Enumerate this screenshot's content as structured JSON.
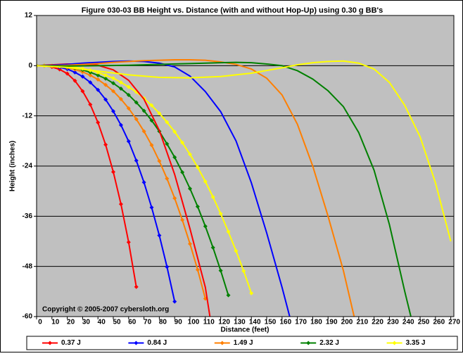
{
  "chart_data": {
    "type": "line",
    "title": "Figure 030-03  BB Height vs. Distance (with and without Hop-Up) using 0.30 g BB's",
    "x_label": "Distance (feet)",
    "y_label": "Height (inches)",
    "annotation": "Copyright © 2005-2007 cybersloth.org",
    "xlim": [
      0,
      272
    ],
    "xticks": [
      0,
      10,
      20,
      30,
      40,
      50,
      60,
      70,
      80,
      90,
      100,
      110,
      120,
      130,
      140,
      150,
      160,
      170,
      180,
      190,
      200,
      210,
      220,
      230,
      240,
      250,
      260,
      270
    ],
    "ylim": [
      -60,
      12
    ],
    "yticks": [
      12,
      0,
      -12,
      -24,
      -36,
      -48,
      -60
    ],
    "grid": true,
    "background": "#c0c0c0",
    "series": [
      {
        "name": "0.37 J",
        "color": "#ff0000",
        "markers": true,
        "x": [
          0,
          5,
          10,
          15,
          20,
          25,
          30,
          35,
          40,
          45,
          50,
          55,
          60,
          65
        ],
        "values": [
          0,
          0,
          -0.3,
          -0.9,
          -1.9,
          -3.6,
          -6.1,
          -9.3,
          -13.6,
          -18.9,
          -25.4,
          -33.1,
          -42.2,
          -52.9
        ]
      },
      {
        "name": "0.84 J",
        "color": "#0000ff",
        "markers": true,
        "x": [
          0,
          5,
          10,
          15,
          20,
          25,
          30,
          35,
          40,
          45,
          50,
          55,
          60,
          65,
          70,
          75,
          80,
          85,
          90
        ],
        "values": [
          0,
          0,
          -0.1,
          -0.4,
          -0.8,
          -1.6,
          -2.6,
          -4.0,
          -5.8,
          -8.1,
          -10.9,
          -14.2,
          -18.1,
          -22.7,
          -27.9,
          -33.9,
          -40.6,
          -48.1,
          -56.4
        ]
      },
      {
        "name": "1.49 J",
        "color": "#ff7f00",
        "markers": true,
        "x": [
          0,
          5,
          10,
          15,
          20,
          25,
          30,
          35,
          40,
          45,
          50,
          55,
          60,
          65,
          70,
          75,
          80,
          85,
          90,
          95,
          100,
          105,
          110
        ],
        "values": [
          0,
          0,
          -0.1,
          -0.2,
          -0.5,
          -0.9,
          -1.5,
          -2.3,
          -3.3,
          -4.6,
          -6.1,
          -8.0,
          -10.2,
          -12.8,
          -15.7,
          -19.0,
          -22.8,
          -27.0,
          -31.7,
          -36.9,
          -42.6,
          -48.8,
          -55.7
        ]
      },
      {
        "name": "2.32 J",
        "color": "#008000",
        "markers": true,
        "x": [
          0,
          5,
          10,
          15,
          20,
          25,
          30,
          35,
          40,
          45,
          50,
          55,
          60,
          65,
          70,
          75,
          80,
          85,
          90,
          95,
          100,
          105,
          110,
          115,
          120,
          125
        ],
        "values": [
          0,
          0,
          0,
          -0.1,
          -0.3,
          -0.6,
          -1.0,
          -1.6,
          -2.3,
          -3.1,
          -4.2,
          -5.5,
          -7.0,
          -8.8,
          -10.8,
          -13.1,
          -15.7,
          -18.7,
          -21.9,
          -25.5,
          -29.4,
          -33.7,
          -38.4,
          -43.5,
          -49.0,
          -54.9
        ]
      },
      {
        "name": "3.35 J",
        "color": "#ffff00",
        "markers": true,
        "x": [
          0,
          5,
          10,
          15,
          20,
          25,
          30,
          35,
          40,
          45,
          50,
          55,
          60,
          65,
          70,
          75,
          80,
          85,
          90,
          95,
          100,
          105,
          110,
          115,
          120,
          125,
          130,
          135,
          140
        ],
        "values": [
          0,
          0,
          0,
          -0.1,
          -0.2,
          -0.4,
          -0.7,
          -1.1,
          -1.6,
          -2.3,
          -3.0,
          -4.0,
          -5.1,
          -6.3,
          -7.8,
          -9.5,
          -11.4,
          -13.5,
          -15.8,
          -18.4,
          -21.2,
          -24.3,
          -27.7,
          -31.4,
          -35.4,
          -39.7,
          -44.3,
          -49.1,
          -54.4
        ]
      },
      {
        "color": "#ff0000",
        "markers": false,
        "x": [
          0,
          10,
          20,
          30,
          40,
          50,
          60,
          70,
          80,
          90,
          100,
          110,
          113
        ],
        "values": [
          0,
          0.2,
          0.4,
          0.4,
          0.1,
          -1,
          -3.5,
          -8,
          -15.5,
          -26,
          -39,
          -53,
          -60
        ]
      },
      {
        "color": "#0000ff",
        "markers": false,
        "x": [
          0,
          10,
          20,
          30,
          40,
          50,
          60,
          70,
          80,
          90,
          100,
          110,
          120,
          130,
          140,
          150,
          160,
          165
        ],
        "values": [
          0,
          0.1,
          0.3,
          0.6,
          0.8,
          1,
          1.1,
          1,
          0.6,
          -0.3,
          -2.5,
          -6.2,
          -11,
          -18,
          -28,
          -40,
          -53,
          -60
        ]
      },
      {
        "color": "#ff7f00",
        "markers": false,
        "x": [
          0,
          10,
          20,
          30,
          40,
          50,
          60,
          70,
          80,
          90,
          100,
          110,
          120,
          130,
          140,
          150,
          160,
          170,
          180,
          190,
          200,
          207
        ],
        "values": [
          0,
          0,
          0.1,
          0.3,
          0.5,
          0.8,
          1,
          1.2,
          1.3,
          1.4,
          1.4,
          1.3,
          0.9,
          0.3,
          -0.8,
          -3,
          -7,
          -14,
          -24,
          -36,
          -49,
          -60
        ]
      },
      {
        "color": "#008000",
        "markers": false,
        "x": [
          0,
          20,
          40,
          60,
          80,
          100,
          120,
          130,
          140,
          150,
          160,
          170,
          180,
          190,
          200,
          210,
          220,
          230,
          240,
          244
        ],
        "values": [
          0,
          -0.1,
          0,
          0.1,
          0.3,
          0.5,
          0.7,
          0.8,
          0.7,
          0.4,
          0,
          -1.2,
          -3.2,
          -6,
          -9.8,
          -16,
          -25,
          -38,
          -54,
          -60
        ]
      },
      {
        "color": "#ffff00",
        "markers": false,
        "x": [
          0,
          20,
          40,
          60,
          80,
          100,
          120,
          140,
          160,
          170,
          180,
          190,
          200,
          210,
          220,
          230,
          240,
          250,
          260,
          270
        ],
        "values": [
          0,
          -0.4,
          -1.3,
          -2.2,
          -2.8,
          -2.9,
          -2.6,
          -1.8,
          -0.5,
          0.2,
          0.7,
          1,
          1.1,
          0.6,
          -0.8,
          -4,
          -9.5,
          -17,
          -28,
          -42
        ]
      }
    ]
  }
}
